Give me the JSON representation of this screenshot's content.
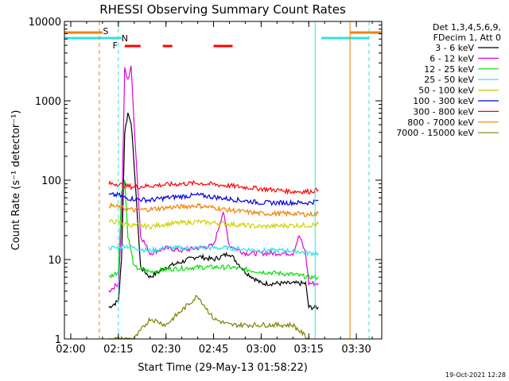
{
  "chart_data": {
    "type": "line",
    "title": "RHESSI Observing Summary Count Rates",
    "xlabel": "Start Time (29-May-13 01:58:22)",
    "ylabel": "Count Rate (s⁻¹ detector⁻¹)",
    "yscale": "log",
    "ylim": [
      1,
      10000
    ],
    "xlim": [
      "01:58",
      "03:38"
    ],
    "x_ticks": [
      "02:00",
      "02:15",
      "02:30",
      "02:45",
      "03:00",
      "03:15",
      "03:30"
    ],
    "y_ticks": [
      "1",
      "10",
      "100",
      "1000",
      "10000"
    ],
    "legend_header": [
      "Det 1,3,4,5,6,9,",
      "FDecim 1, Att 0"
    ],
    "legend_placement": "right",
    "footer_date": "19-Oct-2021 12:28",
    "flags": [
      {
        "label": "S",
        "color": "#f08000"
      },
      {
        "label": "N",
        "color": "#30e0e0"
      },
      {
        "label": "F",
        "color": "#ff0000"
      }
    ],
    "series": [
      {
        "name": "3 - 6 keV",
        "color": "#000000",
        "x": [
          "02:12",
          "02:15",
          "02:16",
          "02:17",
          "02:18",
          "02:19",
          "02:20",
          "02:22",
          "02:25",
          "02:30",
          "02:40",
          "02:45",
          "02:50",
          "02:55",
          "03:00",
          "03:05",
          "03:10",
          "03:12",
          "03:14",
          "03:15",
          "03:18"
        ],
        "y": [
          2.5,
          3,
          10,
          400,
          700,
          550,
          150,
          8,
          6,
          8,
          11,
          10,
          12,
          7,
          5,
          5,
          5,
          5,
          5,
          2.5,
          2.5
        ]
      },
      {
        "name": "6 - 12 keV",
        "color": "#e000e0",
        "x": [
          "02:12",
          "02:15",
          "02:16",
          "02:17",
          "02:18",
          "02:19",
          "02:20",
          "02:22",
          "02:25",
          "02:30",
          "02:35",
          "02:40",
          "02:45",
          "02:48",
          "02:50",
          "02:55",
          "03:00",
          "03:05",
          "03:10",
          "03:12",
          "03:14",
          "03:15",
          "03:18"
        ],
        "y": [
          4,
          5,
          30,
          2500,
          1800,
          2800,
          500,
          20,
          12,
          14,
          13,
          14,
          15,
          40,
          15,
          12,
          12,
          12,
          12,
          20,
          12,
          5,
          5
        ]
      },
      {
        "name": "12 - 25 keV",
        "color": "#00e000",
        "x": [
          "02:12",
          "02:15",
          "02:16",
          "02:17",
          "02:18",
          "02:20",
          "02:25",
          "02:30",
          "02:40",
          "02:50",
          "03:00",
          "03:10",
          "03:15",
          "03:18"
        ],
        "y": [
          6,
          7,
          70,
          100,
          20,
          8,
          7,
          7.5,
          8,
          8,
          7,
          6.5,
          6,
          6
        ]
      },
      {
        "name": "25 - 50 keV",
        "color": "#30e0e0",
        "x": [
          "02:12",
          "02:15",
          "02:17",
          "02:20",
          "02:25",
          "02:30",
          "02:40",
          "02:50",
          "03:00",
          "03:10",
          "03:15",
          "03:18"
        ],
        "y": [
          14,
          14,
          15,
          14,
          13,
          14,
          14,
          14,
          13,
          13,
          12,
          12
        ]
      },
      {
        "name": "50 - 100 keV",
        "color": "#d0d000",
        "x": [
          "02:12",
          "02:15",
          "02:17",
          "02:20",
          "02:25",
          "02:30",
          "02:40",
          "02:50",
          "03:00",
          "03:10",
          "03:15",
          "03:18"
        ],
        "y": [
          30,
          30,
          28,
          27,
          26,
          28,
          30,
          28,
          26,
          27,
          27,
          28
        ]
      },
      {
        "name": "100 - 300 keV",
        "color": "#0000e0",
        "x": [
          "02:12",
          "02:15",
          "02:17",
          "02:20",
          "02:25",
          "02:30",
          "02:40",
          "02:50",
          "03:00",
          "03:10",
          "03:15",
          "03:18"
        ],
        "y": [
          65,
          65,
          60,
          58,
          56,
          60,
          65,
          58,
          52,
          52,
          52,
          55
        ]
      },
      {
        "name": "300 - 800 keV",
        "color": "#ff0000",
        "x": [
          "02:12",
          "02:15",
          "02:17",
          "02:20",
          "02:25",
          "02:30",
          "02:40",
          "02:50",
          "03:00",
          "03:10",
          "03:15",
          "03:18"
        ],
        "y": [
          90,
          90,
          85,
          82,
          85,
          88,
          92,
          85,
          78,
          72,
          72,
          75
        ]
      },
      {
        "name": "800 - 7000 keV",
        "color": "#f08000",
        "x": [
          "02:12",
          "02:15",
          "02:17",
          "02:20",
          "02:25",
          "02:30",
          "02:40",
          "02:50",
          "03:00",
          "03:10",
          "03:15",
          "03:18"
        ],
        "y": [
          48,
          46,
          44,
          42,
          43,
          45,
          48,
          42,
          38,
          38,
          37,
          38
        ]
      },
      {
        "name": "7000 - 15000 keV",
        "color": "#808000",
        "x": [
          "02:12",
          "02:15",
          "02:20",
          "02:25",
          "02:30",
          "02:40",
          "02:45",
          "02:50",
          "03:00",
          "03:10",
          "03:15"
        ],
        "y": [
          1,
          1,
          1,
          1.8,
          1.5,
          3.5,
          1.8,
          1.5,
          1.5,
          1.5,
          1
        ]
      }
    ]
  }
}
